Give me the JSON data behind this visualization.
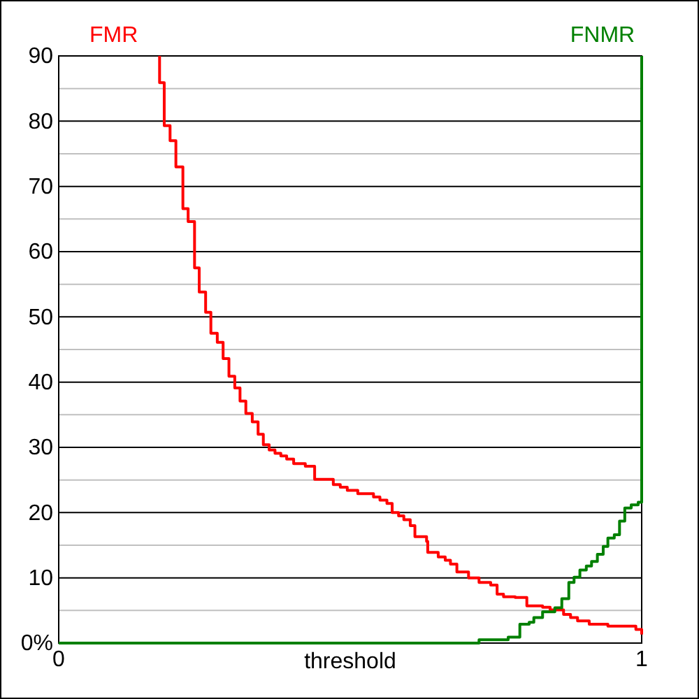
{
  "chart_data": {
    "type": "step",
    "xlabel": "threshold",
    "xlim": [
      0,
      1
    ],
    "xticks": [
      0,
      1
    ],
    "ylim": [
      0,
      90
    ],
    "yticks": [
      {
        "value": 0,
        "label": "0%"
      },
      {
        "value": 5,
        "label": null
      },
      10,
      {
        "value": 15,
        "label": null
      },
      20,
      {
        "value": 25,
        "label": null
      },
      30,
      {
        "value": 35,
        "label": null
      },
      40,
      {
        "value": 45,
        "label": null
      },
      50,
      {
        "value": 55,
        "label": null
      },
      60,
      {
        "value": 65,
        "label": null
      },
      70,
      {
        "value": 75,
        "label": null
      },
      80,
      {
        "value": 85,
        "label": null
      },
      90
    ],
    "grid": "y",
    "legend": false,
    "series": [
      {
        "name": "FMR",
        "color": "#ff0000",
        "x": [
          0.173,
          0.173,
          0.181,
          0.191,
          0.201,
          0.213,
          0.222,
          0.233,
          0.241,
          0.252,
          0.261,
          0.272,
          0.282,
          0.292,
          0.302,
          0.311,
          0.321,
          0.332,
          0.342,
          0.351,
          0.361,
          0.371,
          0.381,
          0.391,
          0.403,
          0.423,
          0.439,
          0.471,
          0.483,
          0.495,
          0.513,
          0.54,
          0.551,
          0.563,
          0.572,
          0.583,
          0.592,
          0.603,
          0.611,
          0.631,
          0.633,
          0.651,
          0.663,
          0.672,
          0.683,
          0.703,
          0.721,
          0.741,
          0.752,
          0.763,
          0.783,
          0.803,
          0.83,
          0.843,
          0.866,
          0.878,
          0.89,
          0.91,
          0.942,
          0.99,
          1.0
        ],
        "values": [
          90,
          85.9,
          79.3,
          77.0,
          73.0,
          66.6,
          64.6,
          57.5,
          53.8,
          50.7,
          47.5,
          46.1,
          43.6,
          40.9,
          39.1,
          37.1,
          35.2,
          33.9,
          32.0,
          30.4,
          29.6,
          29.1,
          28.7,
          28.2,
          27.5,
          27.1,
          25.1,
          24.3,
          23.9,
          23.4,
          22.9,
          22.4,
          21.9,
          21.4,
          20.0,
          19.5,
          18.9,
          18.0,
          16.3,
          15.6,
          13.9,
          13.2,
          12.7,
          12.1,
          10.9,
          10.0,
          9.3,
          8.9,
          7.5,
          7.1,
          7.0,
          5.7,
          5.5,
          5.1,
          4.4,
          3.9,
          3.4,
          2.9,
          2.6,
          2.1,
          1.3
        ]
      },
      {
        "name": "FNMR",
        "color": "#008000",
        "x": [
          0,
          0.721,
          0.771,
          0.791,
          0.807,
          0.815,
          0.83,
          0.851,
          0.863,
          0.875,
          0.884,
          0.894,
          0.905,
          0.914,
          0.924,
          0.934,
          0.942,
          0.953,
          0.962,
          0.971,
          0.982,
          0.994,
          1.0
        ],
        "values": [
          0,
          0.5,
          0.9,
          2.9,
          3.2,
          3.9,
          4.8,
          5.4,
          6.8,
          9.3,
          10.1,
          11.2,
          11.8,
          12.5,
          13.6,
          14.8,
          16.1,
          16.6,
          18.7,
          20.7,
          21.2,
          21.6,
          90
        ]
      }
    ]
  }
}
